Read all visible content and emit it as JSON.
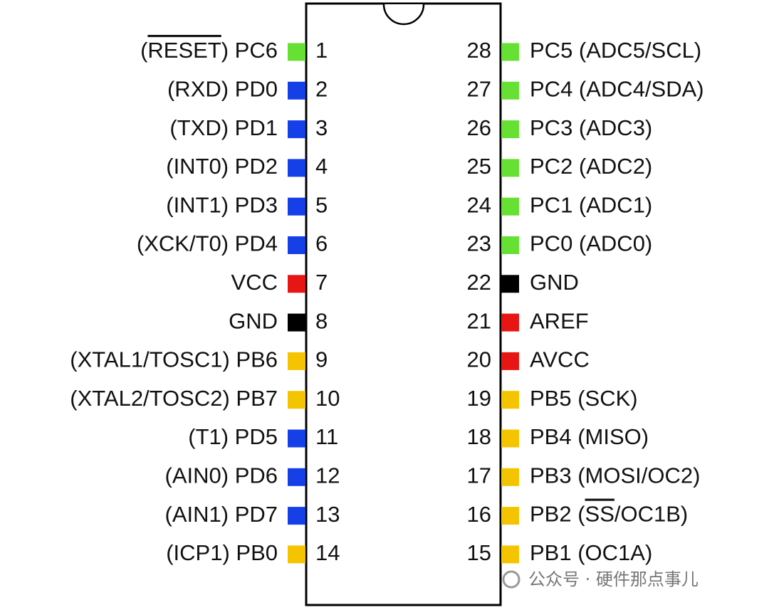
{
  "left_pins": [
    {
      "number": 1,
      "label": [
        "(",
        "RESET",
        ") PC6"
      ],
      "overline": 1,
      "color": "#66e033"
    },
    {
      "number": 2,
      "label": "(RXD) PD0",
      "color": "#1540e8"
    },
    {
      "number": 3,
      "label": "(TXD) PD1",
      "color": "#1540e8"
    },
    {
      "number": 4,
      "label": "(INT0) PD2",
      "color": "#1540e8"
    },
    {
      "number": 5,
      "label": "(INT1) PD3",
      "color": "#1540e8"
    },
    {
      "number": 6,
      "label": "(XCK/T0) PD4",
      "color": "#1540e8"
    },
    {
      "number": 7,
      "label": "VCC",
      "color": "#e81515"
    },
    {
      "number": 8,
      "label": "GND",
      "color": "#000000"
    },
    {
      "number": 9,
      "label": "(XTAL1/TOSC1) PB6",
      "color": "#f5c400"
    },
    {
      "number": 10,
      "label": "(XTAL2/TOSC2) PB7",
      "color": "#f5c400"
    },
    {
      "number": 11,
      "label": "(T1) PD5",
      "color": "#1540e8"
    },
    {
      "number": 12,
      "label": "(AIN0) PD6",
      "color": "#1540e8"
    },
    {
      "number": 13,
      "label": "(AIN1) PD7",
      "color": "#1540e8"
    },
    {
      "number": 14,
      "label": "(ICP1) PB0",
      "color": "#f5c400"
    }
  ],
  "right_pins": [
    {
      "number": 28,
      "label": "PC5 (ADC5/SCL)",
      "color": "#66e033"
    },
    {
      "number": 27,
      "label": "PC4 (ADC4/SDA)",
      "color": "#66e033"
    },
    {
      "number": 26,
      "label": "PC3 (ADC3)",
      "color": "#66e033"
    },
    {
      "number": 25,
      "label": "PC2 (ADC2)",
      "color": "#66e033"
    },
    {
      "number": 24,
      "label": "PC1 (ADC1)",
      "color": "#66e033"
    },
    {
      "number": 23,
      "label": "PC0 (ADC0)",
      "color": "#66e033"
    },
    {
      "number": 22,
      "label": "GND",
      "color": "#000000"
    },
    {
      "number": 21,
      "label": "AREF",
      "color": "#e81515"
    },
    {
      "number": 20,
      "label": "AVCC",
      "color": "#e81515"
    },
    {
      "number": 19,
      "label": "PB5 (SCK)",
      "color": "#f5c400"
    },
    {
      "number": 18,
      "label": "PB4 (MISO)",
      "color": "#f5c400"
    },
    {
      "number": 17,
      "label": "PB3 (MOSI/OC2)",
      "color": "#f5c400"
    },
    {
      "number": 16,
      "label": [
        "PB2 (",
        "SS",
        "/OC1B)"
      ],
      "overline": 1,
      "color": "#f5c400"
    },
    {
      "number": 15,
      "label": "PB1 (OC1A)",
      "color": "#f5c400"
    }
  ],
  "watermark": "公众号 · 硬件那点事儿"
}
